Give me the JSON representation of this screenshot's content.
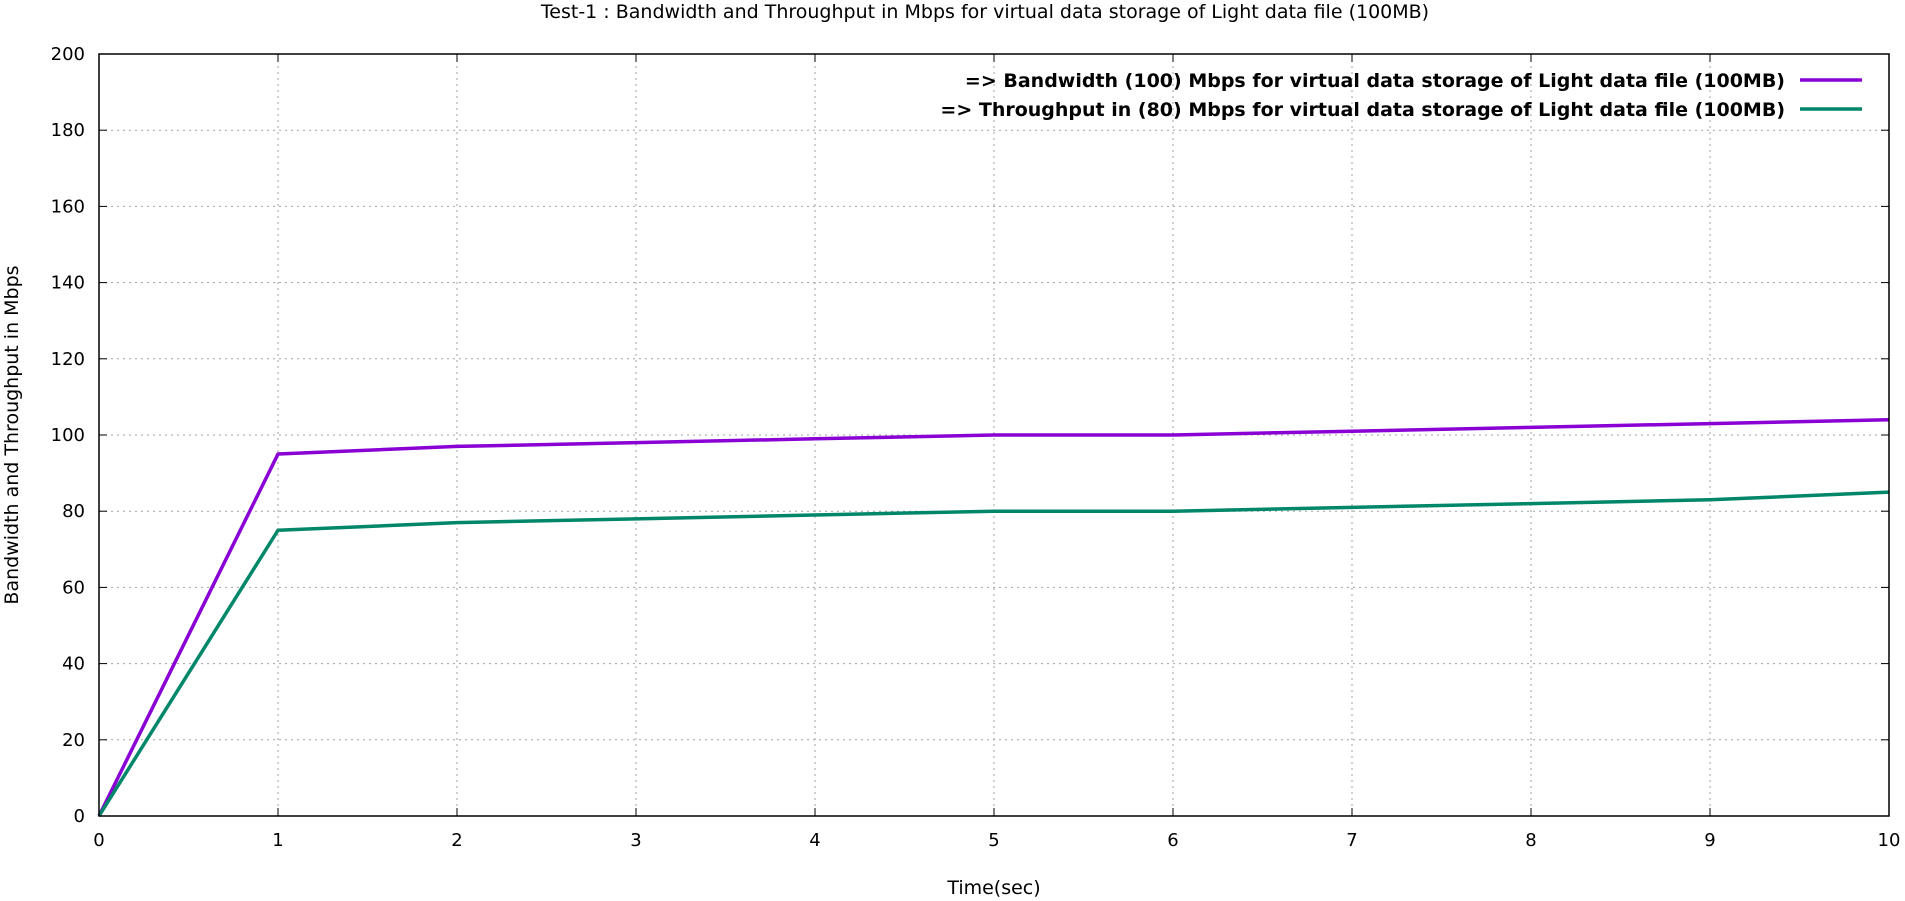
{
  "chart_data": {
    "type": "line",
    "title": "Test-1 : Bandwidth and Throughput in Mbps for virtual data storage of Light data file (100MB)",
    "xlabel": "Time(sec)",
    "ylabel": "Bandwidth and Throughput in Mbps",
    "xlim": [
      0,
      10
    ],
    "ylim": [
      0,
      200
    ],
    "xticks": [
      "0",
      "1",
      "2",
      "3",
      "4",
      "5",
      "6",
      "7",
      "8",
      "9",
      "10"
    ],
    "yticks": [
      "0",
      "20",
      "40",
      "60",
      "80",
      "100",
      "120",
      "140",
      "160",
      "180",
      "200"
    ],
    "grid": true,
    "legend_position": "top-right",
    "x": [
      0,
      1,
      2,
      3,
      4,
      5,
      6,
      7,
      8,
      9,
      10
    ],
    "series": [
      {
        "name": "=>  Bandwidth (100) Mbps for virtual data storage of Light data file (100MB)",
        "color": "#8a00d4",
        "values": [
          0,
          95,
          97,
          98,
          99,
          100,
          100,
          101,
          102,
          103,
          104
        ]
      },
      {
        "name": "=>  Throughput in (80) Mbps for virtual data storage of Light data file (100MB)",
        "color": "#00876a",
        "values": [
          0,
          75,
          77,
          78,
          79,
          80,
          80,
          81,
          82,
          83,
          85
        ]
      }
    ]
  }
}
